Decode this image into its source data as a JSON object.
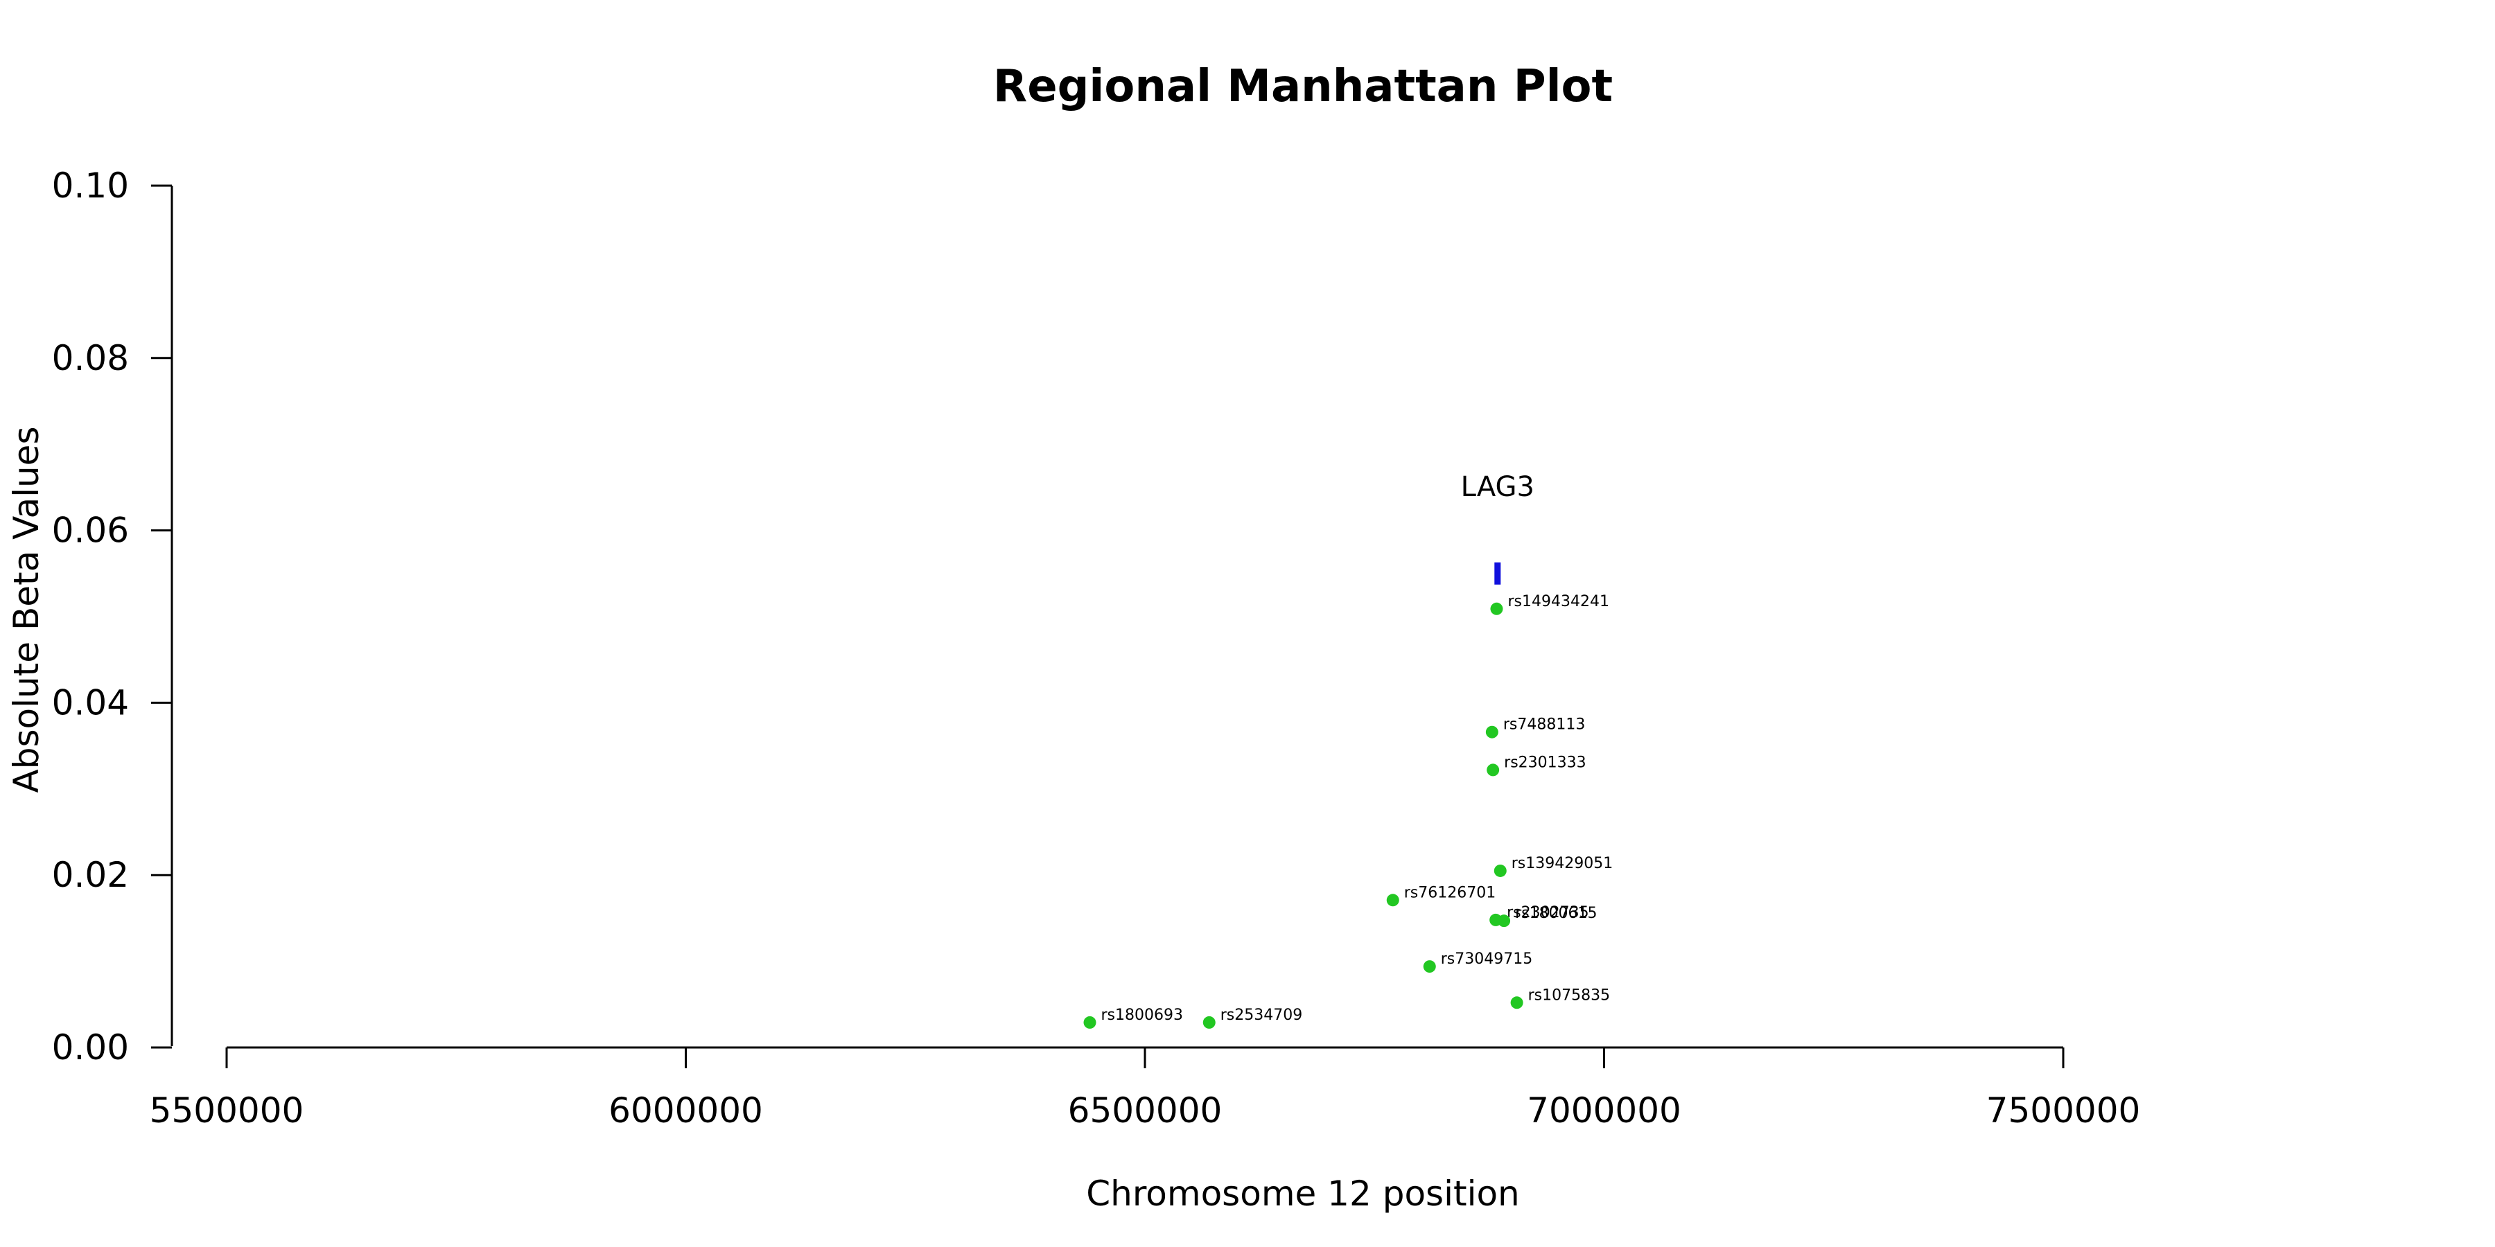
{
  "chart_data": {
    "type": "scatter",
    "title": "Regional Manhattan Plot",
    "xlabel": "Chromosome 12 position",
    "ylabel": "Absolute Beta Values",
    "xlim": [
      5500000,
      7500000
    ],
    "ylim": [
      0,
      0.1
    ],
    "x_ticks": [
      {
        "value": 5500000,
        "label": "5500000"
      },
      {
        "value": 6000000,
        "label": "6000000"
      },
      {
        "value": 6500000,
        "label": "6500000"
      },
      {
        "value": 7000000,
        "label": "7000000"
      },
      {
        "value": 7500000,
        "label": "7500000"
      }
    ],
    "y_ticks": [
      {
        "value": 0.0,
        "label": "0.00"
      },
      {
        "value": 0.02,
        "label": "0.02"
      },
      {
        "value": 0.04,
        "label": "0.04"
      },
      {
        "value": 0.06,
        "label": "0.06"
      },
      {
        "value": 0.08,
        "label": "0.08"
      },
      {
        "value": 0.1,
        "label": "0.10"
      }
    ],
    "point_color": "#22c722",
    "gene_color": "#1010dd",
    "points": [
      {
        "label": "rs1800693",
        "x": 6440000,
        "y": 0.0029
      },
      {
        "label": "rs2534709",
        "x": 6570000,
        "y": 0.0029
      },
      {
        "label": "rs76126701",
        "x": 6770000,
        "y": 0.0171
      },
      {
        "label": "rs73049715",
        "x": 6810000,
        "y": 0.0094
      },
      {
        "label": "rs7488113",
        "x": 6878000,
        "y": 0.0366
      },
      {
        "label": "rs2301333",
        "x": 6879000,
        "y": 0.0322
      },
      {
        "label": "rs149434241",
        "x": 6883000,
        "y": 0.0509
      },
      {
        "label": "rs2302735",
        "x": 6882000,
        "y": 0.0148
      },
      {
        "label": "rs139429051",
        "x": 6887000,
        "y": 0.0205
      },
      {
        "label": "rs1800615",
        "x": 6891000,
        "y": 0.0147
      },
      {
        "label": "rs1075835",
        "x": 6905000,
        "y": 0.0052
      }
    ],
    "genes": [
      {
        "name": "LAG3",
        "start": 6881000,
        "end": 6887000,
        "y": 0.055
      }
    ]
  }
}
